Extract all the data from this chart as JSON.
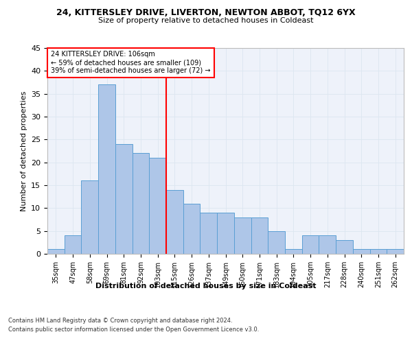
{
  "title1": "24, KITTERSLEY DRIVE, LIVERTON, NEWTON ABBOT, TQ12 6YX",
  "title2": "Size of property relative to detached houses in Coldeast",
  "xlabel": "Distribution of detached houses by size in Coldeast",
  "ylabel": "Number of detached properties",
  "categories": [
    "35sqm",
    "47sqm",
    "58sqm",
    "69sqm",
    "81sqm",
    "92sqm",
    "103sqm",
    "115sqm",
    "126sqm",
    "137sqm",
    "149sqm",
    "160sqm",
    "171sqm",
    "183sqm",
    "194sqm",
    "205sqm",
    "217sqm",
    "228sqm",
    "240sqm",
    "251sqm",
    "262sqm"
  ],
  "values": [
    1,
    4,
    16,
    37,
    24,
    22,
    21,
    14,
    11,
    9,
    9,
    8,
    8,
    5,
    1,
    4,
    4,
    3,
    1,
    1,
    1
  ],
  "bar_color": "#aec6e8",
  "bar_edge_color": "#5a9fd4",
  "grid_color": "#dce6f0",
  "background_color": "#eef2fa",
  "vline_x_index": 6,
  "vline_color": "red",
  "annotation_text": "24 KITTERSLEY DRIVE: 106sqm\n← 59% of detached houses are smaller (109)\n39% of semi-detached houses are larger (72) →",
  "annotation_box_color": "white",
  "annotation_box_edge_color": "red",
  "ylim": [
    0,
    45
  ],
  "yticks": [
    0,
    5,
    10,
    15,
    20,
    25,
    30,
    35,
    40,
    45
  ],
  "footer1": "Contains HM Land Registry data © Crown copyright and database right 2024.",
  "footer2": "Contains public sector information licensed under the Open Government Licence v3.0."
}
